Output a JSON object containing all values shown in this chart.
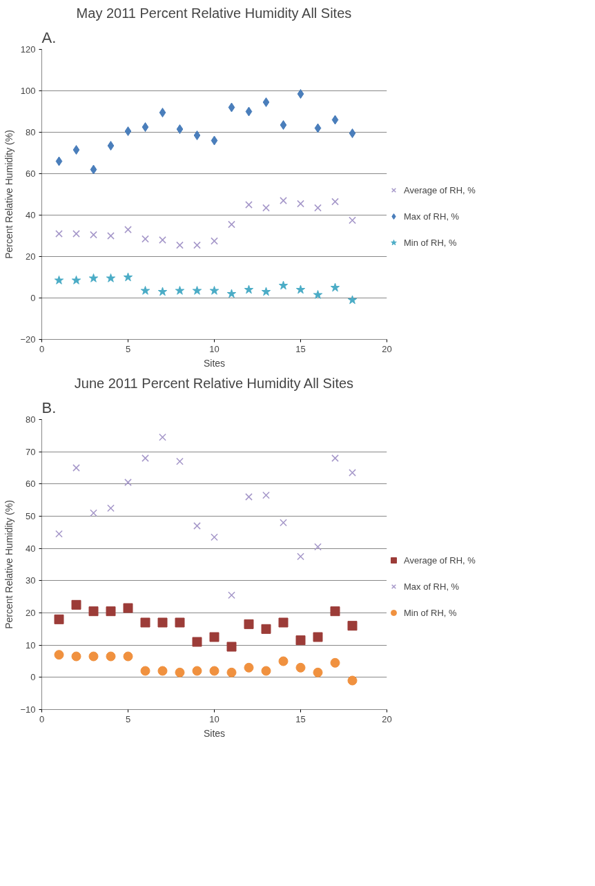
{
  "chart_data": [
    {
      "type": "scatter",
      "title": "May 2011 Percent Relative Humidity All Sites",
      "annotations": [
        "A."
      ],
      "xlabel": "Sites",
      "ylabel": "Percent Relative Humidity (%)",
      "x": [
        1,
        2,
        3,
        4,
        5,
        6,
        7,
        8,
        9,
        10,
        11,
        12,
        13,
        14,
        15,
        16,
        17,
        18
      ],
      "xlim": [
        0,
        20
      ],
      "xticks": [
        0,
        5,
        10,
        15,
        20
      ],
      "ylim": [
        -20,
        120
      ],
      "yticks": [
        -20,
        0,
        20,
        40,
        60,
        80,
        100,
        120
      ],
      "grid": "y",
      "legend": "right",
      "series": [
        {
          "name": "Average of RH, %",
          "color": "#a597c9",
          "marker": "cross",
          "values": [
            31,
            31,
            30.5,
            30,
            33,
            28.5,
            28,
            25.5,
            25.5,
            27.5,
            35.5,
            45,
            43.5,
            47,
            45.5,
            43.5,
            46.5,
            37.5
          ]
        },
        {
          "name": "Max of RH, %",
          "color": "#4a7ebb",
          "marker": "diamond",
          "values": [
            66,
            71.5,
            62,
            73.5,
            80.5,
            82.5,
            89.5,
            81.5,
            78.5,
            76,
            92,
            90,
            94.5,
            83.5,
            98.5,
            82,
            86,
            79.5
          ]
        },
        {
          "name": "Min of RH, %",
          "color": "#4bacc6",
          "marker": "star",
          "values": [
            8.5,
            8.5,
            9.5,
            9.5,
            10,
            3.5,
            3,
            3.5,
            3.5,
            3.5,
            2,
            4,
            3,
            6,
            4,
            1.5,
            5,
            -1
          ]
        }
      ]
    },
    {
      "type": "scatter",
      "title": "June 2011 Percent Relative Humidity All Sites",
      "annotations": [
        "B."
      ],
      "xlabel": "Sites",
      "ylabel": "Percent Relative Humidity (%)",
      "x": [
        1,
        2,
        3,
        4,
        5,
        6,
        7,
        8,
        9,
        10,
        11,
        12,
        13,
        14,
        15,
        16,
        17,
        18
      ],
      "xlim": [
        0,
        20
      ],
      "xticks": [
        0,
        5,
        10,
        15,
        20
      ],
      "ylim": [
        -10,
        80
      ],
      "yticks": [
        -10,
        0,
        10,
        20,
        30,
        40,
        50,
        60,
        70,
        80
      ],
      "grid": "y",
      "legend": "right",
      "series": [
        {
          "name": "Average of RH, %",
          "color": "#9c3c38",
          "marker": "square",
          "values": [
            18,
            22.5,
            20.5,
            20.5,
            21.5,
            17,
            17,
            17,
            11,
            12.5,
            9.5,
            16.5,
            15,
            17,
            11.5,
            12.5,
            20.5,
            16
          ]
        },
        {
          "name": "Max of RH, %",
          "color": "#a597c9",
          "marker": "cross",
          "values": [
            44.5,
            65,
            51,
            52.5,
            60.5,
            68,
            74.5,
            67,
            47,
            43.5,
            25.5,
            56,
            56.5,
            48,
            37.5,
            40.5,
            68,
            63.5
          ]
        },
        {
          "name": "Min of RH, %",
          "color": "#f0913f",
          "marker": "circle",
          "values": [
            7,
            6.5,
            6.5,
            6.5,
            6.5,
            2,
            2,
            1.5,
            2,
            2,
            1.5,
            3,
            2,
            5,
            3,
            1.5,
            4.5,
            -1
          ]
        }
      ]
    }
  ]
}
